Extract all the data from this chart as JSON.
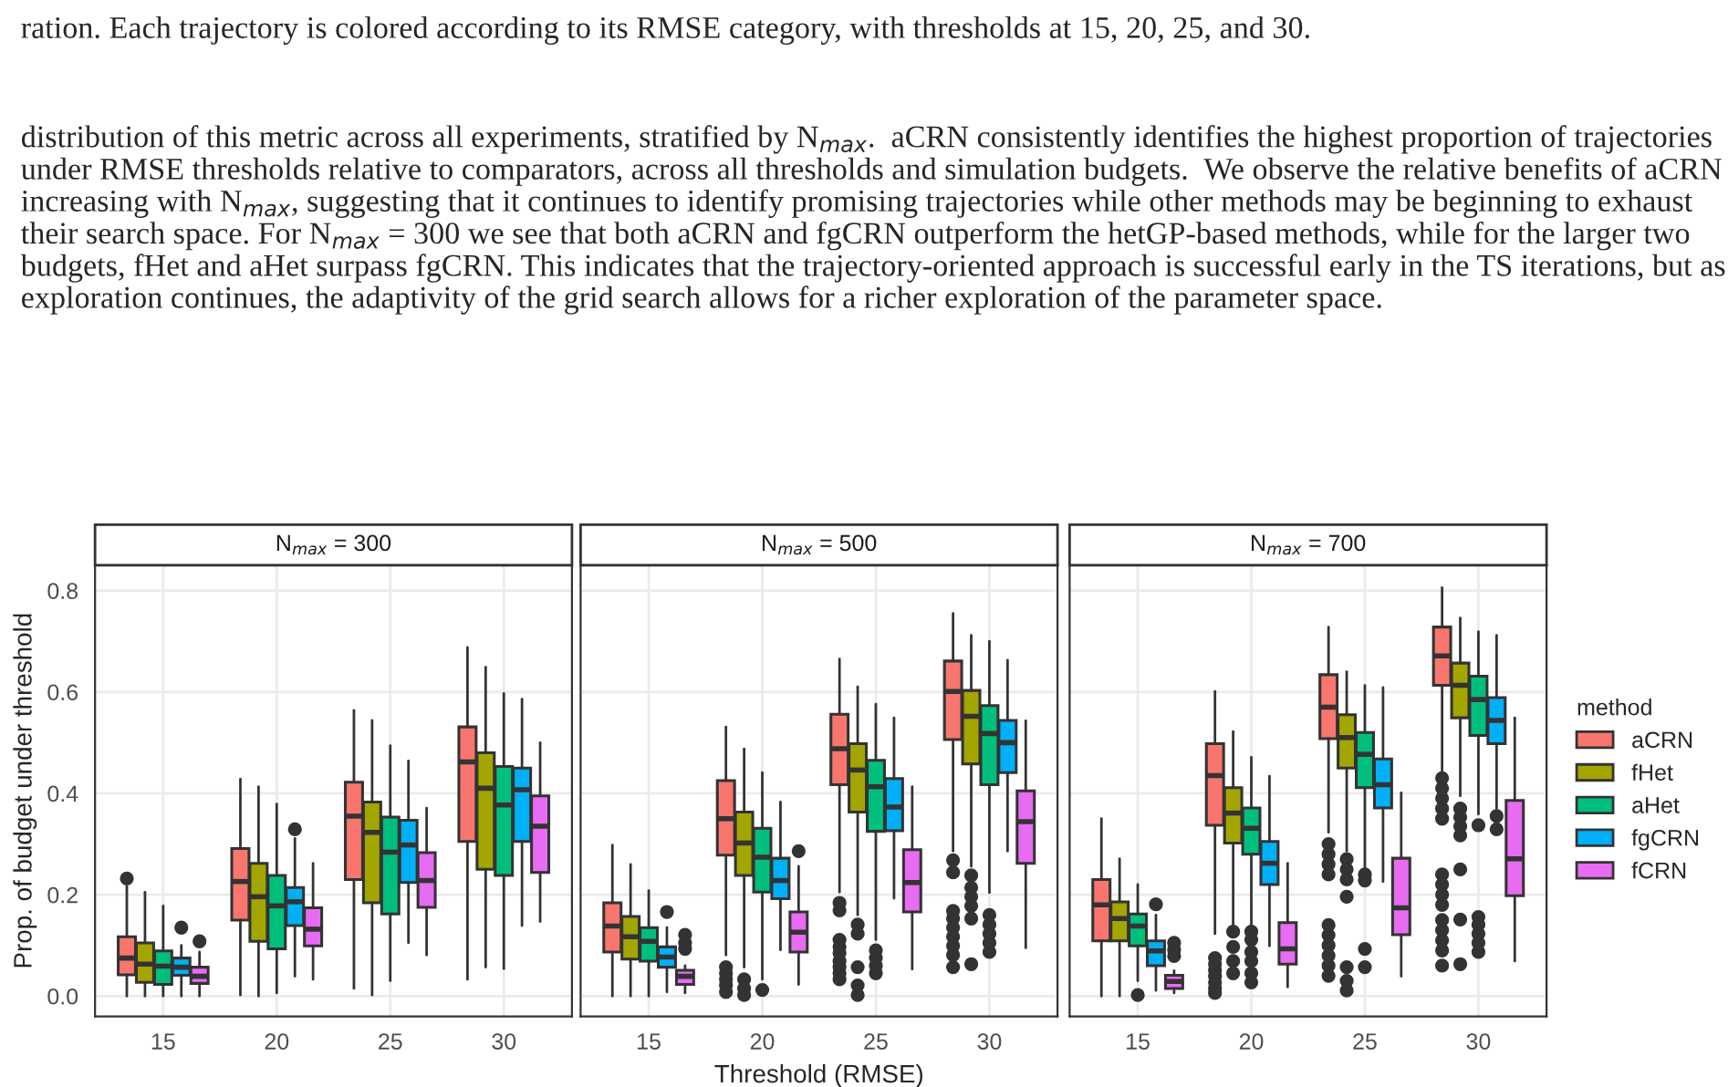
{
  "chart_data": [
    {
      "type": "box",
      "title": "N$_{max}$ = 300",
      "ylabel": "Prop. of budget under threshold",
      "categories": [
        "15",
        "20",
        "25",
        "30"
      ],
      "ylim": [
        -0.04,
        0.85
      ],
      "yticks": [
        {
          "value": 0,
          "label": "0.0"
        },
        {
          "value": 0.2,
          "label": "0.2"
        },
        {
          "value": 0.4,
          "label": "0.4"
        },
        {
          "value": 0.6,
          "label": "0.6"
        },
        {
          "value": 0.8,
          "label": "0.8"
        }
      ],
      "grid": true,
      "legend": false,
      "annotations": [
        "ration. Each trajectory is colored according to its RMSE category, with thresholds at 15, 20, 25, and 30.",
        "distribution of this metric across all experiments, stratified by N$_{max}$.  aCRN consistently identifies the highest proportion of trajectories under RMSE thresholds relative to comparators, across all thresholds and simulation budgets.  We observe the relative benefits of aCRN increasing with N$_{max}$, suggesting that it continues to identify promising trajectories while other methods may be beginning to exhaust their search space. For N$_{max}$ = 300 we see that both aCRN and fgCRN outperform the hetGP-based methods, while for the larger two budgets, fHet and aHet surpass fgCRN. This indicates that the trajectory-oriented approach is successful early in the TS iterations, but as exploration continues, the adaptivity of the grid search allows for a richer exploration of the parameter space."
      ],
      "series": [
        {
          "color": "#f8766d",
          "boxes": [
            {
              "low": 0,
              "q1": 0.042,
              "median": 0.075,
              "q3": 0.117,
              "high": 0.216,
              "outliers": [
                0.232
              ]
            },
            {
              "low": 0.002,
              "q1": 0.15,
              "median": 0.226,
              "q3": 0.291,
              "high": 0.428
            },
            {
              "low": 0.015,
              "q1": 0.23,
              "median": 0.355,
              "q3": 0.422,
              "high": 0.564
            },
            {
              "low": 0.033,
              "q1": 0.305,
              "median": 0.462,
              "q3": 0.531,
              "high": 0.688
            }
          ]
        },
        {
          "color": "#a3a500",
          "boxes": [
            {
              "low": 0,
              "q1": 0.027,
              "median": 0.063,
              "q3": 0.105,
              "high": 0.205
            },
            {
              "low": 0,
              "q1": 0.108,
              "median": 0.196,
              "q3": 0.262,
              "high": 0.413
            },
            {
              "low": 0.002,
              "q1": 0.184,
              "median": 0.323,
              "q3": 0.383,
              "high": 0.544
            },
            {
              "low": 0.057,
              "q1": 0.25,
              "median": 0.41,
              "q3": 0.48,
              "high": 0.649
            }
          ]
        },
        {
          "color": "#00bf7d",
          "boxes": [
            {
              "low": 0,
              "q1": 0.023,
              "median": 0.059,
              "q3": 0.089,
              "high": 0.178
            },
            {
              "low": 0.006,
              "q1": 0.093,
              "median": 0.178,
              "q3": 0.238,
              "high": 0.379
            },
            {
              "low": 0.03,
              "q1": 0.162,
              "median": 0.284,
              "q3": 0.353,
              "high": 0.494
            },
            {
              "low": 0.054,
              "q1": 0.238,
              "median": 0.377,
              "q3": 0.453,
              "high": 0.597
            }
          ]
        },
        {
          "color": "#00b0f6",
          "boxes": [
            {
              "low": 0,
              "q1": 0.041,
              "median": 0.057,
              "q3": 0.075,
              "high": 0.1,
              "outliers": [
                0.135
              ]
            },
            {
              "low": 0.039,
              "q1": 0.139,
              "median": 0.186,
              "q3": 0.214,
              "high": 0.311,
              "outliers": [
                0.329
              ]
            },
            {
              "low": 0.105,
              "q1": 0.224,
              "median": 0.298,
              "q3": 0.347,
              "high": 0.464
            },
            {
              "low": 0.139,
              "q1": 0.305,
              "median": 0.407,
              "q3": 0.45,
              "high": 0.586
            }
          ]
        },
        {
          "color": "#e76bf3",
          "boxes": [
            {
              "low": 0,
              "q1": 0.025,
              "median": 0.039,
              "q3": 0.057,
              "high": 0.087,
              "outliers": [
                0.108
              ]
            },
            {
              "low": 0.033,
              "q1": 0.099,
              "median": 0.132,
              "q3": 0.174,
              "high": 0.262
            },
            {
              "low": 0.081,
              "q1": 0.175,
              "median": 0.228,
              "q3": 0.283,
              "high": 0.371
            },
            {
              "low": 0.147,
              "q1": 0.244,
              "median": 0.335,
              "q3": 0.395,
              "high": 0.5
            }
          ]
        }
      ]
    },
    {
      "type": "box",
      "title": "N$_{max}$ = 500",
      "xlabel": "Threshold (RMSE)",
      "categories": [
        "15",
        "20",
        "25",
        "30"
      ],
      "ylim": [
        -0.04,
        0.85
      ],
      "yticks": [
        0,
        0.2,
        0.4,
        0.6,
        0.8
      ],
      "grid": true,
      "legend": false,
      "tick_labels": "x",
      "series": [
        {
          "color": "#f8766d",
          "boxes": [
            {
              "low": 0,
              "q1": 0.087,
              "median": 0.138,
              "q3": 0.184,
              "high": 0.298
            },
            {
              "low": 0.081,
              "q1": 0.278,
              "median": 0.35,
              "q3": 0.425,
              "high": 0.531,
              "outliers": [
                0.057,
                0.045,
                0.033,
                0.021,
                0.008
              ]
            },
            {
              "low": 0.205,
              "q1": 0.417,
              "median": 0.488,
              "q3": 0.556,
              "high": 0.665,
              "outliers": [
                0.184,
                0.169,
                0.111,
                0.097,
                0.085,
                0.069,
                0.057,
                0.045,
                0.033
              ]
            },
            {
              "low": 0.286,
              "q1": 0.506,
              "median": 0.601,
              "q3": 0.661,
              "high": 0.755,
              "outliers": [
                0.268,
                0.244,
                0.168,
                0.153,
                0.135,
                0.117,
                0.099,
                0.081,
                0.057
              ]
            }
          ]
        },
        {
          "color": "#a3a500",
          "boxes": [
            {
              "low": 0,
              "q1": 0.073,
              "median": 0.117,
              "q3": 0.157,
              "high": 0.26
            },
            {
              "low": 0.057,
              "q1": 0.238,
              "median": 0.302,
              "q3": 0.363,
              "high": 0.488,
              "outliers": [
                0.033,
                0.015,
                0.002
              ]
            },
            {
              "low": 0.16,
              "q1": 0.363,
              "median": 0.446,
              "q3": 0.498,
              "high": 0.61,
              "outliers": [
                0.141,
                0.123,
                0.057,
                0.021,
                0.002
              ]
            },
            {
              "low": 0.256,
              "q1": 0.458,
              "median": 0.552,
              "q3": 0.603,
              "high": 0.712,
              "outliers": [
                0.238,
                0.214,
                0.196,
                0.178,
                0.153,
                0.063
              ]
            }
          ]
        },
        {
          "color": "#00bf7d",
          "boxes": [
            {
              "low": 0,
              "q1": 0.069,
              "median": 0.108,
              "q3": 0.135,
              "high": 0.208
            },
            {
              "low": 0.033,
              "q1": 0.205,
              "median": 0.274,
              "q3": 0.331,
              "high": 0.441,
              "outliers": [
                0.012
              ]
            },
            {
              "low": 0.111,
              "q1": 0.325,
              "median": 0.413,
              "q3": 0.465,
              "high": 0.576,
              "outliers": [
                0.09,
                0.075,
                0.06,
                0.045
              ]
            },
            {
              "low": 0.204,
              "q1": 0.417,
              "median": 0.518,
              "q3": 0.573,
              "high": 0.7,
              "outliers": [
                0.16,
                0.141,
                0.123,
                0.105,
                0.087
              ]
            }
          ]
        },
        {
          "color": "#00b0f6",
          "boxes": [
            {
              "low": 0.008,
              "q1": 0.057,
              "median": 0.077,
              "q3": 0.097,
              "high": 0.135,
              "outliers": [
                0.166
              ]
            },
            {
              "low": 0.091,
              "q1": 0.192,
              "median": 0.228,
              "q3": 0.272,
              "high": 0.383
            },
            {
              "low": 0.193,
              "q1": 0.326,
              "median": 0.373,
              "q3": 0.429,
              "high": 0.549
            },
            {
              "low": 0.286,
              "q1": 0.441,
              "median": 0.5,
              "q3": 0.544,
              "high": 0.663
            }
          ]
        },
        {
          "color": "#e76bf3",
          "boxes": [
            {
              "low": 0.006,
              "q1": 0.023,
              "median": 0.039,
              "q3": 0.051,
              "high": 0.06,
              "outliers": [
                0.121,
                0.105,
                0.093
              ]
            },
            {
              "low": 0.023,
              "q1": 0.087,
              "median": 0.126,
              "q3": 0.166,
              "high": 0.256,
              "outliers": [
                0.286
              ]
            },
            {
              "low": 0.053,
              "q1": 0.166,
              "median": 0.224,
              "q3": 0.289,
              "high": 0.413
            },
            {
              "low": 0.095,
              "q1": 0.262,
              "median": 0.344,
              "q3": 0.405,
              "high": 0.543
            }
          ]
        }
      ]
    },
    {
      "type": "box",
      "title": "N$_{max}$ = 700",
      "categories": [
        "15",
        "20",
        "25",
        "30"
      ],
      "ylim": [
        -0.04,
        0.85
      ],
      "yticks": [
        0,
        0.2,
        0.4,
        0.6,
        0.8
      ],
      "grid": true,
      "legend": "right",
      "legend_title": "method",
      "tick_labels": "x",
      "series": [
        {
          "name": "aCRN",
          "color": "#f8766d",
          "boxes": [
            {
              "low": 0,
              "q1": 0.109,
              "median": 0.18,
              "q3": 0.23,
              "high": 0.35
            },
            {
              "low": 0.123,
              "q1": 0.337,
              "median": 0.435,
              "q3": 0.498,
              "high": 0.601,
              "outliers": [
                0.075,
                0.063,
                0.051,
                0.039,
                0.027,
                0.015,
                0.006
              ]
            },
            {
              "low": 0.323,
              "q1": 0.508,
              "median": 0.57,
              "q3": 0.634,
              "high": 0.728,
              "outliers": [
                0.3,
                0.28,
                0.26,
                0.24,
                0.14,
                0.12,
                0.1,
                0.08,
                0.06,
                0.04
              ]
            },
            {
              "low": 0.437,
              "q1": 0.613,
              "median": 0.671,
              "q3": 0.728,
              "high": 0.806,
              "outliers": [
                0.43,
                0.41,
                0.39,
                0.37,
                0.35,
                0.24,
                0.22,
                0.2,
                0.18,
                0.15,
                0.13,
                0.11,
                0.09,
                0.06
              ]
            }
          ]
        },
        {
          "name": "fHet",
          "color": "#a3a500",
          "boxes": [
            {
              "low": 0,
              "q1": 0.109,
              "median": 0.153,
              "q3": 0.186,
              "high": 0.271
            },
            {
              "low": 0.141,
              "q1": 0.302,
              "median": 0.361,
              "q3": 0.411,
              "high": 0.522,
              "outliers": [
                0.127,
                0.097,
                0.069,
                0.045
              ]
            },
            {
              "low": 0.286,
              "q1": 0.45,
              "median": 0.51,
              "q3": 0.555,
              "high": 0.64,
              "outliers": [
                0.27,
                0.25,
                0.23,
                0.196,
                0.057,
                0.03,
                0.011
              ]
            },
            {
              "low": 0.395,
              "q1": 0.549,
              "median": 0.613,
              "q3": 0.657,
              "high": 0.746,
              "outliers": [
                0.37,
                0.353,
                0.335,
                0.317,
                0.25,
                0.151,
                0.063
              ]
            }
          ]
        },
        {
          "name": "aHet",
          "color": "#00bf7d",
          "boxes": [
            {
              "low": 0.03,
              "q1": 0.099,
              "median": 0.138,
              "q3": 0.162,
              "high": 0.22,
              "outliers": [
                0.002
              ]
            },
            {
              "low": 0.141,
              "q1": 0.28,
              "median": 0.331,
              "q3": 0.371,
              "high": 0.471,
              "outliers": [
                0.127,
                0.111,
                0.087,
                0.069,
                0.045,
                0.027
              ]
            },
            {
              "low": 0.25,
              "q1": 0.411,
              "median": 0.477,
              "q3": 0.52,
              "high": 0.613,
              "outliers": [
                0.24,
                0.228,
                0.093,
                0.057
              ]
            },
            {
              "low": 0.359,
              "q1": 0.514,
              "median": 0.585,
              "q3": 0.631,
              "high": 0.719,
              "outliers": [
                0.337,
                0.156,
                0.141,
                0.123,
                0.105,
                0.087
              ]
            }
          ]
        },
        {
          "name": "fgCRN",
          "color": "#00b0f6",
          "boxes": [
            {
              "low": 0.011,
              "q1": 0.06,
              "median": 0.089,
              "q3": 0.109,
              "high": 0.16,
              "outliers": [
                0.181
              ]
            },
            {
              "low": 0.099,
              "q1": 0.22,
              "median": 0.262,
              "q3": 0.305,
              "high": 0.434
            },
            {
              "low": 0.226,
              "q1": 0.371,
              "median": 0.417,
              "q3": 0.468,
              "high": 0.609
            },
            {
              "low": 0.37,
              "q1": 0.498,
              "median": 0.544,
              "q3": 0.589,
              "high": 0.712,
              "outliers": [
                0.355,
                0.329
              ]
            }
          ]
        },
        {
          "name": "fCRN",
          "color": "#e76bf3",
          "boxes": [
            {
              "low": 0.006,
              "q1": 0.015,
              "median": 0.029,
              "q3": 0.041,
              "high": 0.05,
              "outliers": [
                0.105,
                0.091,
                0.079
              ]
            },
            {
              "low": 0.018,
              "q1": 0.063,
              "median": 0.093,
              "q3": 0.145,
              "high": 0.262
            },
            {
              "low": 0.039,
              "q1": 0.121,
              "median": 0.174,
              "q3": 0.272,
              "high": 0.401
            },
            {
              "low": 0.069,
              "q1": 0.198,
              "median": 0.271,
              "q3": 0.386,
              "high": 0.549
            }
          ]
        }
      ]
    }
  ]
}
